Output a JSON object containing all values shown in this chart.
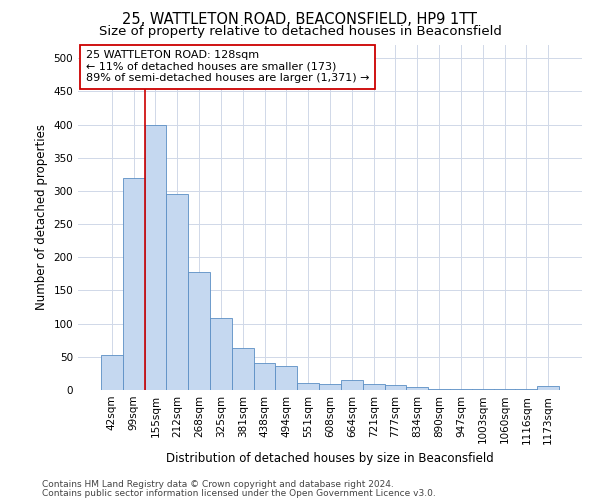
{
  "title1": "25, WATTLETON ROAD, BEACONSFIELD, HP9 1TT",
  "title2": "Size of property relative to detached houses in Beaconsfield",
  "xlabel": "Distribution of detached houses by size in Beaconsfield",
  "ylabel": "Number of detached properties",
  "footnote1": "Contains HM Land Registry data © Crown copyright and database right 2024.",
  "footnote2": "Contains public sector information licensed under the Open Government Licence v3.0.",
  "categories": [
    "42sqm",
    "99sqm",
    "155sqm",
    "212sqm",
    "268sqm",
    "325sqm",
    "381sqm",
    "438sqm",
    "494sqm",
    "551sqm",
    "608sqm",
    "664sqm",
    "721sqm",
    "777sqm",
    "834sqm",
    "890sqm",
    "947sqm",
    "1003sqm",
    "1060sqm",
    "1116sqm",
    "1173sqm"
  ],
  "values": [
    53,
    320,
    400,
    295,
    178,
    108,
    64,
    40,
    36,
    10,
    9,
    15,
    9,
    7,
    5,
    2,
    1,
    1,
    1,
    1,
    6
  ],
  "bar_color": "#c5d8f0",
  "bar_edge_color": "#5b8ec4",
  "annotation_line_color": "#cc0000",
  "annotation_text_line1": "25 WATTLETON ROAD: 128sqm",
  "annotation_text_line2": "← 11% of detached houses are smaller (173)",
  "annotation_text_line3": "89% of semi-detached houses are larger (1,371) →",
  "ylim": [
    0,
    520
  ],
  "yticks": [
    0,
    50,
    100,
    150,
    200,
    250,
    300,
    350,
    400,
    450,
    500
  ],
  "background_color": "#ffffff",
  "grid_color": "#d0d8e8",
  "title1_fontsize": 10.5,
  "title2_fontsize": 9.5,
  "xlabel_fontsize": 8.5,
  "ylabel_fontsize": 8.5,
  "tick_fontsize": 7.5,
  "annot_fontsize": 8.0,
  "footnote_fontsize": 6.5
}
